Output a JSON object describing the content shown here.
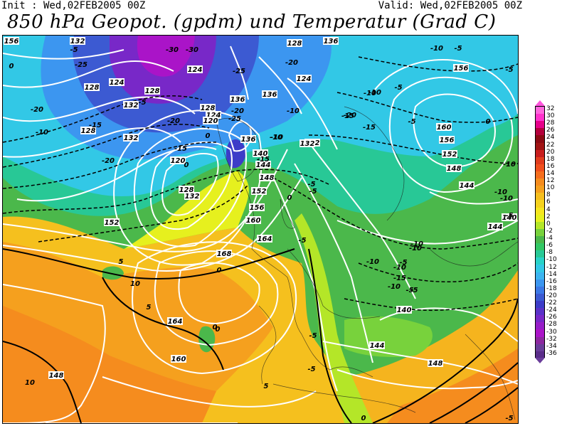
{
  "header": {
    "init": "Init : Wed,02FEB2005 00Z",
    "valid": "Valid: Wed,02FEB2005 00Z",
    "title": "850 hPa Geopot. (gpdm) und Temperatur (Grad C)"
  },
  "colors": {
    "legend_top_arrow": "#ff55dd",
    "legend_bottom_arrow": "#6a3d9a",
    "geopotential_contours": "#ffffff",
    "temperature_contours": "#000000"
  },
  "legend": {
    "entries": [
      {
        "value": "32",
        "color": "#ff66dd"
      },
      {
        "value": "30",
        "color": "#ff33cc"
      },
      {
        "value": "28",
        "color": "#e6008a"
      },
      {
        "value": "26",
        "color": "#b4003c"
      },
      {
        "value": "24",
        "color": "#8c0a14"
      },
      {
        "value": "22",
        "color": "#a01414"
      },
      {
        "value": "20",
        "color": "#c81e1e"
      },
      {
        "value": "18",
        "color": "#e13c1e"
      },
      {
        "value": "16",
        "color": "#f0501e"
      },
      {
        "value": "14",
        "color": "#f56e1e"
      },
      {
        "value": "12",
        "color": "#f58c1e"
      },
      {
        "value": "10",
        "color": "#f5a01e"
      },
      {
        "value": "8",
        "color": "#f5be1e"
      },
      {
        "value": "6",
        "color": "#f5d21e"
      },
      {
        "value": "4",
        "color": "#f5e61e"
      },
      {
        "value": "2",
        "color": "#e6f01e"
      },
      {
        "value": "0",
        "color": "#b4e628"
      },
      {
        "value": "-2",
        "color": "#78d23c"
      },
      {
        "value": "-4",
        "color": "#4bb84b"
      },
      {
        "value": "-6",
        "color": "#32c864"
      },
      {
        "value": "-8",
        "color": "#28c896"
      },
      {
        "value": "-10",
        "color": "#28d2c8"
      },
      {
        "value": "-12",
        "color": "#32c8e6"
      },
      {
        "value": "-14",
        "color": "#3cb4f0"
      },
      {
        "value": "-16",
        "color": "#3c96f0"
      },
      {
        "value": "-18",
        "color": "#3c78e6"
      },
      {
        "value": "-20",
        "color": "#3c5ad2"
      },
      {
        "value": "-22",
        "color": "#3c3cc8"
      },
      {
        "value": "-24",
        "color": "#5a32c8"
      },
      {
        "value": "-26",
        "color": "#7828c8"
      },
      {
        "value": "-28",
        "color": "#961ec8"
      },
      {
        "value": "-30",
        "color": "#aa14c8"
      },
      {
        "value": "-32",
        "color": "#8c28a0"
      },
      {
        "value": "-34",
        "color": "#6a3d9a"
      },
      {
        "value": "-36",
        "color": "#5a2d8a"
      }
    ]
  },
  "map": {
    "geopotential_labels": [
      {
        "text": "124"
      },
      {
        "text": "128"
      },
      {
        "text": "132"
      },
      {
        "text": "124"
      },
      {
        "text": "128"
      },
      {
        "text": "132"
      },
      {
        "text": "136"
      },
      {
        "text": "128"
      },
      {
        "text": "124"
      },
      {
        "text": "120"
      },
      {
        "text": "120"
      },
      {
        "text": "128"
      },
      {
        "text": "132"
      },
      {
        "text": "136"
      },
      {
        "text": "140"
      },
      {
        "text": "144"
      },
      {
        "text": "148"
      },
      {
        "text": "152"
      },
      {
        "text": "156"
      },
      {
        "text": "160"
      },
      {
        "text": "164"
      },
      {
        "text": "168"
      },
      {
        "text": "164"
      },
      {
        "text": "160"
      },
      {
        "text": "156"
      },
      {
        "text": "148"
      },
      {
        "text": "152"
      },
      {
        "text": "132"
      },
      {
        "text": "128"
      },
      {
        "text": "124"
      },
      {
        "text": "132"
      },
      {
        "text": "136"
      },
      {
        "text": "156"
      },
      {
        "text": "160"
      },
      {
        "text": "156"
      },
      {
        "text": "152"
      },
      {
        "text": "148"
      },
      {
        "text": "144"
      },
      {
        "text": "140"
      },
      {
        "text": "144"
      },
      {
        "text": "140"
      },
      {
        "text": "144"
      },
      {
        "text": "148"
      },
      {
        "text": "128"
      },
      {
        "text": "136"
      },
      {
        "text": "132"
      }
    ],
    "temperature_labels": [
      {
        "text": "-5"
      },
      {
        "text": "0"
      },
      {
        "text": "-25"
      },
      {
        "text": "-30"
      },
      {
        "text": "-30"
      },
      {
        "text": "-20"
      },
      {
        "text": "-10"
      },
      {
        "text": "-20"
      },
      {
        "text": "-15"
      },
      {
        "text": "-10"
      },
      {
        "text": "-20"
      },
      {
        "text": "-5"
      },
      {
        "text": "-25"
      },
      {
        "text": "-20"
      },
      {
        "text": "0"
      },
      {
        "text": "-25"
      },
      {
        "text": "-20"
      },
      {
        "text": "-15"
      },
      {
        "text": "-10"
      },
      {
        "text": "-10"
      },
      {
        "text": "-5"
      },
      {
        "text": "-5"
      },
      {
        "text": "0"
      },
      {
        "text": "-5"
      },
      {
        "text": "0"
      },
      {
        "text": "-5"
      },
      {
        "text": "-10"
      },
      {
        "text": "-15"
      },
      {
        "text": "-20"
      },
      {
        "text": "-15"
      },
      {
        "text": "-10"
      },
      {
        "text": "-15"
      },
      {
        "text": "-10"
      },
      {
        "text": "-5"
      },
      {
        "text": "-10"
      },
      {
        "text": "-10"
      },
      {
        "text": "-10"
      },
      {
        "text": "-5"
      },
      {
        "text": "-10"
      },
      {
        "text": "-5"
      },
      {
        "text": "-10"
      },
      {
        "text": "-5"
      },
      {
        "text": "-10"
      },
      {
        "text": "-5"
      },
      {
        "text": "-10"
      },
      {
        "text": "-10"
      },
      {
        "text": "-5"
      },
      {
        "text": "0"
      },
      {
        "text": "-5"
      },
      {
        "text": "0"
      },
      {
        "text": "5"
      },
      {
        "text": "10"
      },
      {
        "text": "5"
      },
      {
        "text": "0"
      },
      {
        "text": "0"
      },
      {
        "text": "5"
      },
      {
        "text": "-5"
      },
      {
        "text": "-5"
      },
      {
        "text": "0"
      },
      {
        "text": "10"
      },
      {
        "text": "-5"
      },
      {
        "text": "-15"
      }
    ]
  }
}
